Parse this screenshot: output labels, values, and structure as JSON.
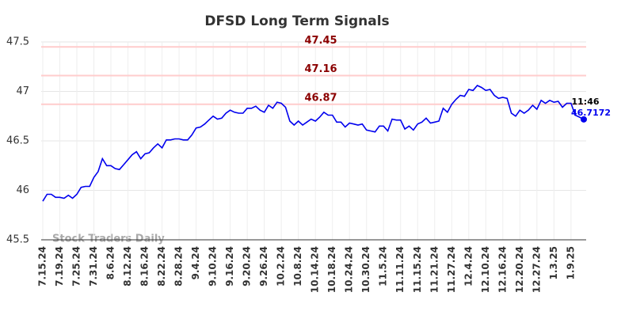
{
  "chart_data": {
    "type": "line",
    "title": "DFSD Long Term Signals",
    "watermark": "Stock Traders Daily",
    "categories": [
      "7.15.24",
      null,
      null,
      null,
      "7.19.24",
      null,
      null,
      null,
      "7.25.24",
      null,
      null,
      null,
      "7.31.24",
      null,
      null,
      null,
      "8.6.24",
      null,
      null,
      null,
      "8.12.24",
      null,
      null,
      null,
      "8.16.24",
      null,
      null,
      null,
      "8.22.24",
      null,
      null,
      null,
      "8.28.24",
      null,
      null,
      null,
      "9.4.24",
      null,
      null,
      null,
      "9.10.24",
      null,
      null,
      null,
      "9.16.24",
      null,
      null,
      null,
      "9.20.24",
      null,
      null,
      null,
      "9.26.24",
      null,
      null,
      null,
      "10.2.24",
      null,
      null,
      null,
      "10.8.24",
      null,
      null,
      null,
      "10.14.24",
      null,
      null,
      null,
      "10.18.24",
      null,
      null,
      null,
      "10.24.24",
      null,
      null,
      null,
      "10.30.24",
      null,
      null,
      null,
      "11.5.24",
      null,
      null,
      null,
      "11.11.24",
      null,
      null,
      null,
      "11.15.24",
      null,
      null,
      null,
      "11.21.24",
      null,
      null,
      null,
      "11.27.24",
      null,
      null,
      null,
      "12.4.24",
      null,
      null,
      null,
      "12.10.24",
      null,
      null,
      null,
      "12.16.24",
      null,
      null,
      null,
      "12.20.24",
      null,
      null,
      null,
      "12.27.24",
      null,
      null,
      null,
      "1.3.25",
      null,
      null,
      null,
      "1.9.25",
      null,
      null,
      null
    ],
    "values": [
      45.89,
      45.96,
      45.96,
      45.93,
      45.93,
      45.92,
      45.95,
      45.92,
      45.96,
      46.03,
      46.04,
      46.04,
      46.13,
      46.19,
      46.32,
      46.25,
      46.25,
      46.22,
      46.21,
      46.26,
      46.31,
      46.36,
      46.39,
      46.32,
      46.37,
      46.38,
      46.43,
      46.47,
      46.43,
      46.51,
      46.51,
      46.52,
      46.52,
      46.51,
      46.51,
      46.56,
      46.63,
      46.64,
      46.67,
      46.71,
      46.75,
      46.72,
      46.73,
      46.78,
      46.81,
      46.79,
      46.78,
      46.78,
      46.83,
      46.83,
      46.85,
      46.81,
      46.79,
      46.86,
      46.83,
      46.89,
      46.88,
      46.84,
      46.7,
      46.66,
      46.7,
      46.66,
      46.69,
      46.72,
      46.7,
      46.74,
      46.79,
      46.76,
      46.76,
      46.69,
      46.69,
      46.64,
      46.68,
      46.67,
      46.66,
      46.67,
      46.61,
      46.6,
      46.59,
      46.65,
      46.65,
      46.6,
      46.72,
      46.71,
      46.71,
      46.62,
      46.65,
      46.61,
      46.67,
      46.69,
      46.73,
      46.68,
      46.69,
      46.7,
      46.83,
      46.79,
      46.87,
      46.92,
      46.96,
      46.95,
      47.02,
      47.01,
      47.06,
      47.04,
      47.01,
      47.02,
      46.96,
      46.93,
      46.94,
      46.93,
      46.78,
      46.75,
      46.81,
      46.78,
      46.81,
      46.86,
      46.82,
      46.91,
      46.88,
      46.91,
      46.89,
      46.9,
      46.84,
      46.88,
      46.88,
      46.76,
      46.74,
      46.7172
    ],
    "color": "#0000ee",
    "ylim": [
      45.5,
      47.5
    ],
    "yticks": [
      45.5,
      46,
      46.5,
      47,
      47.5
    ],
    "grid": true,
    "reference_lines": [
      47.45,
      47.16,
      46.87
    ],
    "reference_color": "#ffcccc",
    "reference_label_color": "#8b0000",
    "last_label": {
      "time": "11:46",
      "value": 46.7172
    }
  }
}
